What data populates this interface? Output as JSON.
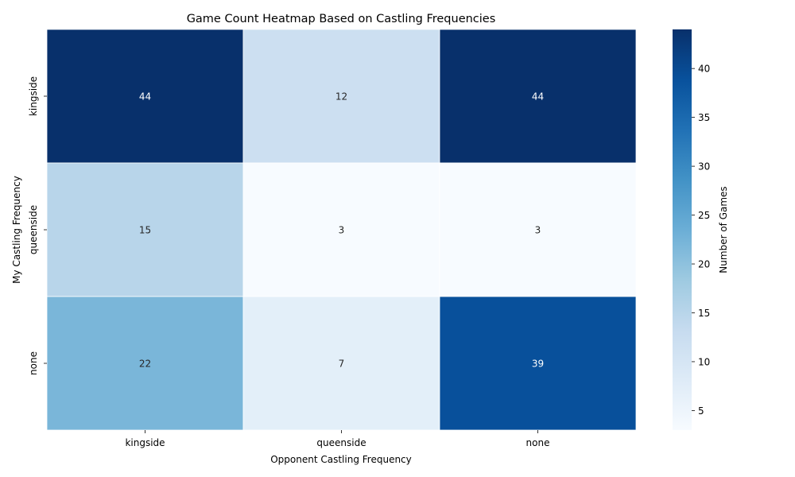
{
  "chart_data": {
    "type": "heatmap",
    "title": "Game Count Heatmap Based on Castling Frequencies",
    "xlabel": "Opponent Castling Frequency",
    "ylabel": "My Castling Frequency",
    "x_categories": [
      "kingside",
      "queenside",
      "none"
    ],
    "y_categories": [
      "kingside",
      "queenside",
      "none"
    ],
    "values": [
      [
        44,
        12,
        44
      ],
      [
        15,
        3,
        3
      ],
      [
        22,
        7,
        39
      ]
    ],
    "colormap": "Blues",
    "color_range": [
      3,
      44
    ],
    "colorbar": {
      "label": "Number of Games",
      "ticks": [
        5,
        10,
        15,
        20,
        25,
        30,
        35,
        40
      ]
    }
  }
}
